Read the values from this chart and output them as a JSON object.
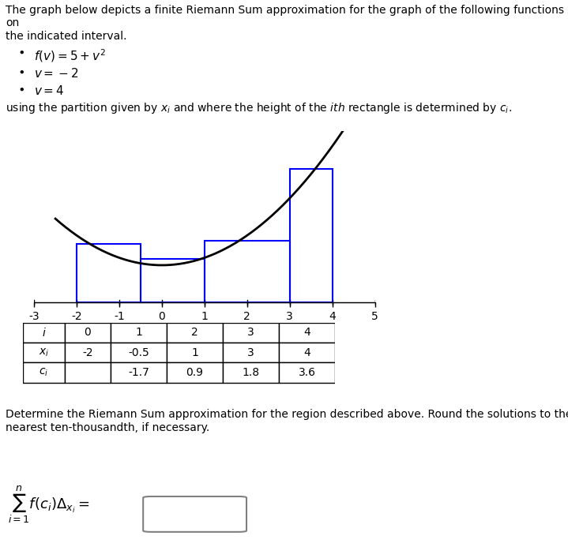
{
  "title_text": "The graph below depicts a finite Riemann Sum approximation for the graph of the following functions on\nthe indicated interval.",
  "bullet1": "$f(v) = 5 + v^2$",
  "bullet2": "$v = -2$",
  "bullet3": "$v = 4$",
  "partition_text": "using the partition given by $x_i$ and where the height of the $ith$ rectangle is determined by $c_i$.",
  "x_partition": [
    -2,
    -0.5,
    1,
    3,
    4
  ],
  "c_values": [
    -1.7,
    0.9,
    1.8,
    3.6
  ],
  "x_min": -3,
  "x_max": 5,
  "curve_color": "black",
  "rect_color": "blue",
  "rect_edge_color": "blue",
  "ax_color": "black",
  "table_header_color": "#cce5ff",
  "table_i": [
    0,
    1,
    2,
    3,
    4
  ],
  "table_xi": [
    -2,
    -0.5,
    1,
    3,
    4
  ],
  "table_ci": [
    "",
    -1.7,
    0.9,
    1.8,
    3.6
  ],
  "bottom_text": "Determine the Riemann Sum approximation for the region described above. Round the solutions to the\nnearest ten-thousandth, if necessary.",
  "sum_label": "$\\sum_{i=1}^{n} f(c_i)\\Delta_{x_i} =$"
}
